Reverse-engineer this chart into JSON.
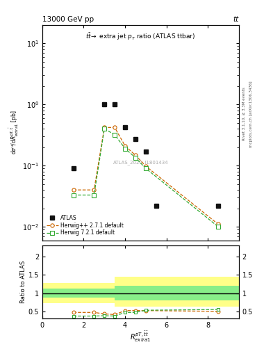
{
  "header_left": "13000 GeV pp",
  "header_right": "tt",
  "title_main": "tt→ extra jet p_T ratio (ATLAS ttbar)",
  "watermark": "ATLAS_2020_I1801434",
  "rivet_text": "Rivet 3.1.10, ≥ 3.3M events",
  "arxiv_text": "mcplots.cern.ch [arXiv:1306.3436]",
  "ylabel_ratio": "Ratio to ATLAS",
  "xlabel": "R^{pT,bartt}_{extra1}",
  "atlas_x": [
    1.5,
    3.0,
    3.5,
    4.0,
    4.5,
    5.0,
    5.5,
    8.5
  ],
  "atlas_y": [
    0.09,
    1.0,
    1.0,
    0.42,
    0.27,
    0.17,
    0.022,
    0.022
  ],
  "hw_x": [
    1.5,
    2.5,
    3.0,
    3.5,
    4.0,
    4.5,
    5.0,
    8.5
  ],
  "hw_y": [
    0.04,
    0.04,
    0.42,
    0.42,
    0.21,
    0.148,
    0.098,
    0.011
  ],
  "hw7_x": [
    1.5,
    2.5,
    3.0,
    3.5,
    4.0,
    4.5,
    5.0,
    8.5
  ],
  "hw7_y": [
    0.033,
    0.033,
    0.4,
    0.32,
    0.19,
    0.135,
    0.09,
    0.01
  ],
  "ratio_hw_x": [
    1.5,
    2.5,
    3.0,
    3.5,
    4.0,
    4.5,
    5.0,
    8.5
  ],
  "ratio_hw_y": [
    0.47,
    0.47,
    0.43,
    0.41,
    0.52,
    0.52,
    0.52,
    0.5
  ],
  "ratio_hw7_x": [
    1.5,
    2.5,
    3.0,
    3.5,
    4.0,
    4.5,
    5.0,
    8.5
  ],
  "ratio_hw7_y": [
    0.37,
    0.37,
    0.38,
    0.37,
    0.47,
    0.47,
    0.53,
    0.55
  ],
  "band_yellow_x": [
    0.0,
    1.0,
    1.0,
    3.5,
    3.5,
    4.5,
    4.5,
    9.5,
    9.5
  ],
  "band_yellow_lo": [
    0.72,
    0.72,
    0.72,
    0.72,
    0.63,
    0.63,
    0.63,
    0.63,
    0.63
  ],
  "band_yellow_hi": [
    1.28,
    1.28,
    1.28,
    1.28,
    1.45,
    1.45,
    1.45,
    1.45,
    1.45
  ],
  "band_green_x": [
    0.0,
    1.0,
    1.0,
    3.5,
    3.5,
    4.5,
    4.5,
    9.5,
    9.5
  ],
  "band_green_lo": [
    0.88,
    0.88,
    0.88,
    0.88,
    0.8,
    0.8,
    0.8,
    0.8,
    0.8
  ],
  "band_green_hi": [
    1.12,
    1.12,
    1.12,
    1.12,
    1.2,
    1.2,
    1.2,
    1.2,
    1.2
  ],
  "color_hw": "#cc6600",
  "color_hw7": "#33aa33",
  "color_atlas": "#111111",
  "color_yellow": "#ffff88",
  "color_green": "#88ee88",
  "ylim_main": [
    0.006,
    20.0
  ],
  "ylim_ratio": [
    0.3,
    2.3
  ],
  "xlim": [
    0,
    9.5
  ],
  "xticks": [
    0,
    2,
    4,
    6,
    8
  ]
}
